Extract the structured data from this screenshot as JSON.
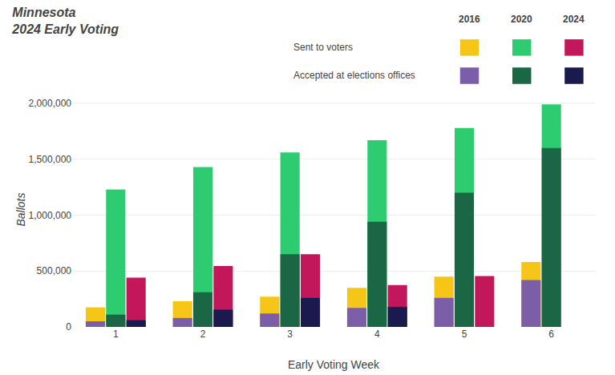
{
  "chart_data": {
    "type": "bar",
    "title": "Minnesota",
    "subtitle": "2024 Early Voting",
    "x_label": "Early Voting Week",
    "y_label": "Ballots",
    "categories": [
      1,
      2,
      3,
      4,
      5,
      6
    ],
    "series": [
      {
        "name": "Sent to voters",
        "group": "2016",
        "color": "#F5C518",
        "values": [
          175000,
          230000,
          270000,
          350000,
          450000,
          580000
        ]
      },
      {
        "name": "Accepted at elections offices",
        "group": "2016",
        "color": "#7B5EA7",
        "values": [
          50000,
          80000,
          120000,
          170000,
          260000,
          420000
        ]
      },
      {
        "name": "Sent to voters",
        "group": "2020",
        "color": "#2ECC71",
        "values": [
          1230000,
          1430000,
          1560000,
          1670000,
          1780000,
          1990000
        ]
      },
      {
        "name": "Accepted at elections offices",
        "group": "2020",
        "color": "#1A6645",
        "values": [
          110000,
          310000,
          650000,
          940000,
          1200000,
          1600000
        ]
      },
      {
        "name": "Sent to voters",
        "group": "2024",
        "color": "#C2185B",
        "values": [
          440000,
          545000,
          650000,
          375000,
          455000,
          0
        ]
      },
      {
        "name": "Accepted at elections offices",
        "group": "2024",
        "color": "#1A1A4E",
        "values": [
          60000,
          155000,
          260000,
          180000,
          0,
          0
        ]
      }
    ],
    "ylim": [
      0,
      2100000
    ],
    "yticks": [
      0,
      {
        "value": 500000,
        "label": "500,000"
      },
      {
        "value": 1000000,
        "label": "1,000,000"
      },
      {
        "value": 1500000,
        "label": "1,500,000"
      },
      {
        "value": 2000000,
        "label": "2,000,000"
      }
    ],
    "grid": true,
    "legend": "top right"
  }
}
